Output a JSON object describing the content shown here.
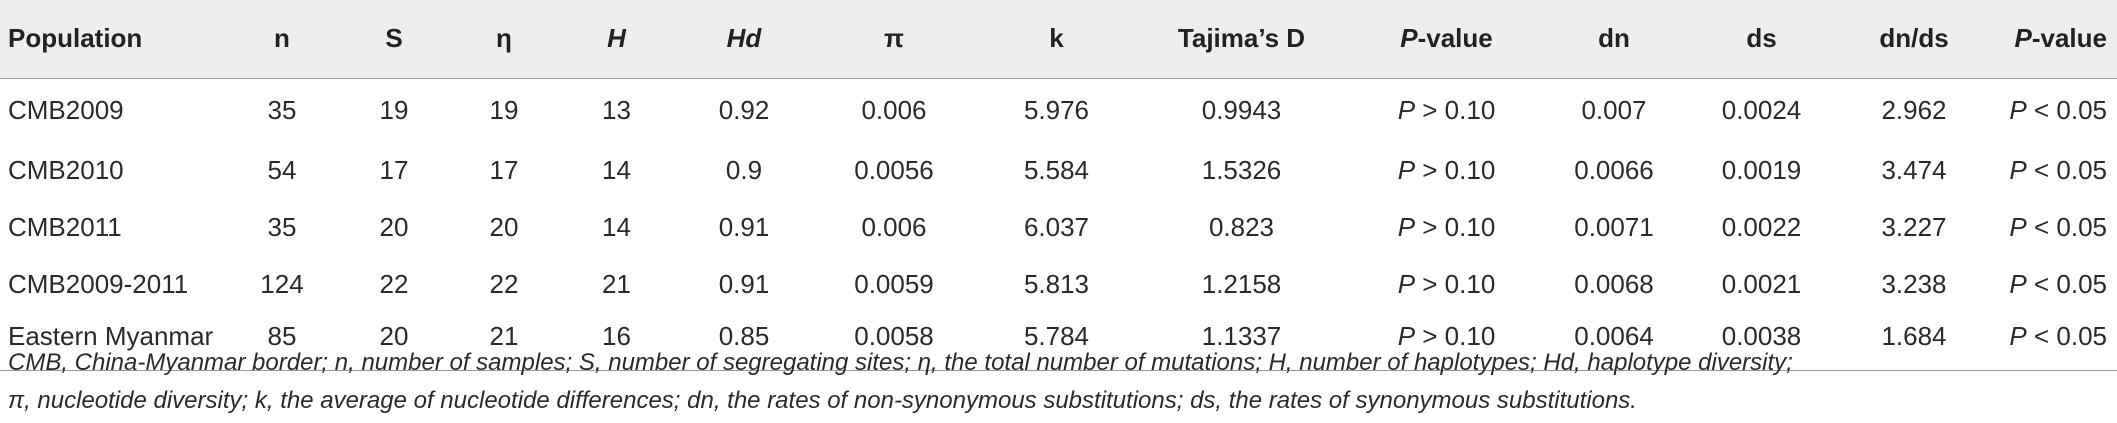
{
  "table": {
    "headers": [
      {
        "key": "population",
        "label": "Population",
        "italic": false
      },
      {
        "key": "n",
        "label": "n",
        "italic": false
      },
      {
        "key": "S",
        "label": "S",
        "italic": false
      },
      {
        "key": "eta",
        "label": "η",
        "italic": false
      },
      {
        "key": "H",
        "label": "H",
        "italic": true
      },
      {
        "key": "Hd",
        "label": "Hd",
        "italic": true
      },
      {
        "key": "pi",
        "label": "π",
        "italic": false
      },
      {
        "key": "k",
        "label": "k",
        "italic": false
      },
      {
        "key": "tajima",
        "label": "Tajima’s D",
        "italic": false
      },
      {
        "key": "pvalue1",
        "label_italic": "P",
        "label_rest": "-value",
        "italic": false
      },
      {
        "key": "dn",
        "label": "dn",
        "italic": false
      },
      {
        "key": "ds",
        "label": "ds",
        "italic": false
      },
      {
        "key": "dnds",
        "label": "dn/ds",
        "italic": false
      },
      {
        "key": "pvalue2",
        "label_italic": "P",
        "label_rest": "-value",
        "italic": false
      }
    ],
    "rows": [
      {
        "population": "CMB2009",
        "n": "35",
        "S": "19",
        "eta": "19",
        "H": "13",
        "Hd": "0.92",
        "pi": "0.006",
        "k": "5.976",
        "tajima": "0.9943",
        "p1_sym": "P",
        "p1_rest": " > 0.10",
        "dn": "0.007",
        "ds": "0.0024",
        "dnds": "2.962",
        "p2_sym": "P",
        "p2_rest": " < 0.05"
      },
      {
        "population": "CMB2010",
        "n": "54",
        "S": "17",
        "eta": "17",
        "H": "14",
        "Hd": "0.9",
        "pi": "0.0056",
        "k": "5.584",
        "tajima": "1.5326",
        "p1_sym": "P",
        "p1_rest": " > 0.10",
        "dn": "0.0066",
        "ds": "0.0019",
        "dnds": "3.474",
        "p2_sym": "P",
        "p2_rest": " < 0.05"
      },
      {
        "population": "CMB2011",
        "n": "35",
        "S": "20",
        "eta": "20",
        "H": "14",
        "Hd": "0.91",
        "pi": "0.006",
        "k": "6.037",
        "tajima": "0.823",
        "p1_sym": "P",
        "p1_rest": " > 0.10",
        "dn": "0.0071",
        "ds": "0.0022",
        "dnds": "3.227",
        "p2_sym": "P",
        "p2_rest": " < 0.05"
      },
      {
        "population": "CMB2009-2011",
        "n": "124",
        "S": "22",
        "eta": "22",
        "H": "21",
        "Hd": "0.91",
        "pi": "0.0059",
        "k": "5.813",
        "tajima": "1.2158",
        "p1_sym": "P",
        "p1_rest": " > 0.10",
        "dn": "0.0068",
        "ds": "0.0021",
        "dnds": "3.238",
        "p2_sym": "P",
        "p2_rest": " < 0.05"
      },
      {
        "population": "Eastern Myanmar",
        "n": "85",
        "S": "20",
        "eta": "21",
        "H": "16",
        "Hd": "0.85",
        "pi": "0.0058",
        "k": "5.784",
        "tajima": "1.1337",
        "p1_sym": "P",
        "p1_rest": " > 0.10",
        "dn": "0.0064",
        "ds": "0.0038",
        "dnds": "1.684",
        "p2_sym": "P",
        "p2_rest": " < 0.05"
      }
    ]
  },
  "footnote": {
    "line1": "CMB, China-Myanmar border; n, number of samples; S, number of segregating sites; η, the total number of mutations; H, number of haplotypes; Hd, haplotype diversity;",
    "line2": "π, nucleotide diversity; k, the average of nucleotide differences; dn, the rates of non-synonymous substitutions; ds, the rates of synonymous substitutions."
  }
}
